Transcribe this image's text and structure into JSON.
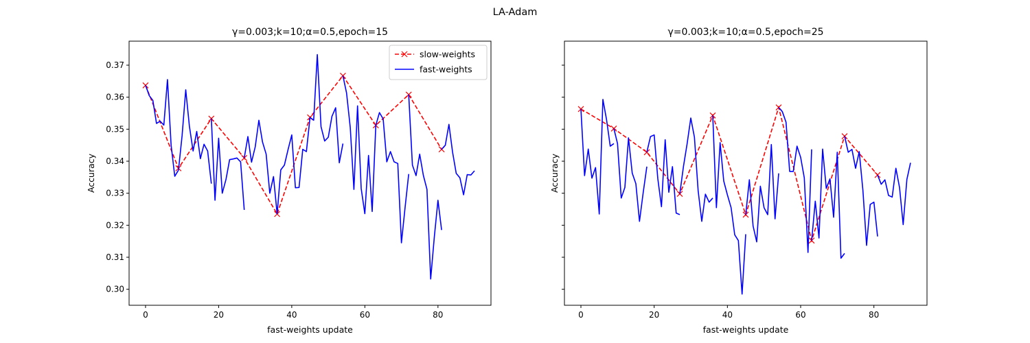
{
  "figure": {
    "suptitle": "LA-Adam"
  },
  "colors": {
    "slow": "#ff0000",
    "fast": "#0000ff",
    "axis": "#000000"
  },
  "chart_data": [
    {
      "type": "line",
      "title": "γ=0.003;k=10;α=0.5,epoch=15",
      "xlabel": "fast-weights update",
      "ylabel": "Accuracy",
      "xlim": [
        -4.5,
        94.5
      ],
      "ylim": [
        0.295,
        0.3775
      ],
      "xticks": [
        0,
        20,
        40,
        60,
        80
      ],
      "xtick_labels": [
        "0",
        "20",
        "40",
        "60",
        "80"
      ],
      "yticks": [
        0.3,
        0.31,
        0.32,
        0.33,
        0.34,
        0.35,
        0.36,
        0.37
      ],
      "ytick_labels": [
        "0.30",
        "0.31",
        "0.32",
        "0.33",
        "0.34",
        "0.35",
        "0.36",
        "0.37"
      ],
      "show_ytick_labels": true,
      "grid": false,
      "legend": {
        "position": "top-right",
        "entries": [
          {
            "label": "slow-weights",
            "series": "slow"
          },
          {
            "label": "fast-weights",
            "series": "fast"
          }
        ]
      },
      "series": [
        {
          "name": "slow-weights",
          "key": "slow",
          "style": "dashed",
          "marker": "x",
          "x": [
            0,
            9,
            18,
            27,
            36,
            45,
            54,
            63,
            72,
            81
          ],
          "y": [
            0.3637,
            0.3378,
            0.3533,
            0.341,
            0.3235,
            0.3537,
            0.3667,
            0.3512,
            0.3608,
            0.3437
          ]
        },
        {
          "name": "fast-weights",
          "key": "fast",
          "style": "solid",
          "segments": [
            {
              "x": [
                0,
                1,
                2,
                3,
                4,
                5,
                6,
                7,
                8,
                9
              ],
              "y": [
                0.3637,
                0.3605,
                0.359,
                0.3518,
                0.3525,
                0.3513,
                0.3655,
                0.345,
                0.3353,
                0.3372
              ]
            },
            {
              "x": [
                9,
                10,
                11,
                12,
                13,
                14,
                15,
                16,
                17,
                18
              ],
              "y": [
                0.3372,
                0.348,
                0.3623,
                0.351,
                0.3432,
                0.3493,
                0.3408,
                0.3453,
                0.3432,
                0.333
              ]
            },
            {
              "x": [
                18,
                19,
                20,
                21,
                22,
                23,
                24,
                25,
                26,
                27
              ],
              "y": [
                0.3533,
                0.3278,
                0.3472,
                0.33,
                0.3343,
                0.3405,
                0.3407,
                0.341,
                0.3398,
                0.3248
              ]
            },
            {
              "x": [
                27,
                28,
                29,
                30,
                31,
                32,
                33,
                34,
                35,
                36
              ],
              "y": [
                0.341,
                0.3477,
                0.3397,
                0.3445,
                0.3528,
                0.346,
                0.3422,
                0.33,
                0.3352,
                0.3235
              ]
            },
            {
              "x": [
                36,
                37,
                38,
                39,
                40,
                41,
                42,
                43,
                44,
                45
              ],
              "y": [
                0.3235,
                0.3373,
                0.3388,
                0.3437,
                0.3482,
                0.3317,
                0.3318,
                0.3437,
                0.343,
                0.3537
              ]
            },
            {
              "x": [
                45,
                46,
                47,
                48,
                49,
                50,
                51,
                52,
                53,
                54
              ],
              "y": [
                0.3537,
                0.3528,
                0.3733,
                0.3508,
                0.3463,
                0.3475,
                0.354,
                0.3567,
                0.3395,
                0.3455
              ]
            },
            {
              "x": [
                54,
                55,
                56,
                57,
                58,
                59,
                60,
                61,
                62,
                63
              ],
              "y": [
                0.3667,
                0.3613,
                0.3505,
                0.3312,
                0.3573,
                0.3315,
                0.3236,
                0.3418,
                0.3243,
                0.3512
              ]
            },
            {
              "x": [
                63,
                64,
                65,
                66,
                67,
                68,
                69,
                70,
                71,
                72
              ],
              "y": [
                0.3512,
                0.3552,
                0.3532,
                0.3398,
                0.343,
                0.3398,
                0.3393,
                0.3145,
                0.3255,
                0.336
              ]
            },
            {
              "x": [
                72,
                73,
                74,
                75,
                76,
                77,
                78,
                79,
                80,
                81
              ],
              "y": [
                0.3608,
                0.3388,
                0.3355,
                0.3422,
                0.3356,
                0.3312,
                0.3032,
                0.3163,
                0.3278,
                0.3185
              ]
            },
            {
              "x": [
                81,
                82,
                83,
                84,
                85,
                86,
                87,
                88,
                89,
                90
              ],
              "y": [
                0.3437,
                0.345,
                0.3515,
                0.3428,
                0.3362,
                0.3348,
                0.3295,
                0.3358,
                0.3357,
                0.337
              ]
            }
          ]
        }
      ]
    },
    {
      "type": "line",
      "title": "γ=0.003;k=10;α=0.5,epoch=25",
      "xlabel": "fast-weights update",
      "ylabel": "Accuracy",
      "xlim": [
        -4.5,
        94.5
      ],
      "ylim": [
        0.295,
        0.3775
      ],
      "xticks": [
        0,
        20,
        40,
        60,
        80
      ],
      "xtick_labels": [
        "0",
        "20",
        "40",
        "60",
        "80"
      ],
      "yticks": [
        0.3,
        0.31,
        0.32,
        0.33,
        0.34,
        0.35,
        0.36,
        0.37
      ],
      "show_ytick_labels": false,
      "grid": false,
      "series": [
        {
          "name": "slow-weights",
          "key": "slow",
          "style": "dashed",
          "marker": "x",
          "x": [
            0,
            9,
            18,
            27,
            36,
            45,
            54,
            63,
            72,
            81
          ],
          "y": [
            0.3563,
            0.3502,
            0.3428,
            0.3298,
            0.3543,
            0.3233,
            0.3568,
            0.3152,
            0.3478,
            0.3357
          ]
        },
        {
          "name": "fast-weights",
          "key": "fast",
          "style": "solid",
          "segments": [
            {
              "x": [
                0,
                1,
                2,
                3,
                4,
                5,
                6,
                7,
                8,
                9
              ],
              "y": [
                0.3563,
                0.3355,
                0.3438,
                0.3347,
                0.338,
                0.3235,
                0.3593,
                0.353,
                0.3447,
                0.3455
              ]
            },
            {
              "x": [
                9,
                10,
                11,
                12,
                13,
                14,
                15,
                16,
                17,
                18
              ],
              "y": [
                0.3502,
                0.3455,
                0.3285,
                0.3318,
                0.3473,
                0.3363,
                0.333,
                0.3212,
                0.3302,
                0.3383
              ]
            },
            {
              "x": [
                18,
                19,
                20,
                21,
                22,
                23,
                24,
                25,
                26,
                27
              ],
              "y": [
                0.3428,
                0.3477,
                0.3482,
                0.3345,
                0.3258,
                0.3467,
                0.3303,
                0.3383,
                0.3238,
                0.3233
              ]
            },
            {
              "x": [
                27,
                28,
                29,
                30,
                31,
                32,
                33,
                34,
                35,
                36
              ],
              "y": [
                0.3298,
                0.3383,
                0.3455,
                0.3535,
                0.3475,
                0.3308,
                0.3212,
                0.3297,
                0.3272,
                0.3285
              ]
            },
            {
              "x": [
                36,
                37,
                38,
                39,
                40,
                41,
                42,
                43,
                44,
                45
              ],
              "y": [
                0.3543,
                0.3255,
                0.3458,
                0.3338,
                0.3295,
                0.3255,
                0.317,
                0.3152,
                0.2985,
                0.3172
              ]
            },
            {
              "x": [
                45,
                46,
                47,
                48,
                49,
                50,
                51,
                52,
                53,
                54
              ],
              "y": [
                0.3233,
                0.3342,
                0.3198,
                0.3148,
                0.3322,
                0.3255,
                0.3233,
                0.3452,
                0.322,
                0.3362
              ]
            },
            {
              "x": [
                54,
                55,
                56,
                57,
                58,
                59,
                60,
                61,
                62,
                63
              ],
              "y": [
                0.3568,
                0.3555,
                0.3522,
                0.3368,
                0.3368,
                0.3447,
                0.3412,
                0.3348,
                0.3115,
                0.3437
              ]
            },
            {
              "x": [
                63,
                64,
                65,
                66,
                67,
                68,
                69,
                70,
                71,
                72
              ],
              "y": [
                0.3152,
                0.3275,
                0.316,
                0.3438,
                0.3315,
                0.3345,
                0.3225,
                0.3428,
                0.3097,
                0.3112
              ]
            },
            {
              "x": [
                72,
                73,
                74,
                75,
                76,
                77,
                78,
                79,
                80,
                81
              ],
              "y": [
                0.3478,
                0.3428,
                0.3437,
                0.3378,
                0.343,
                0.3308,
                0.3137,
                0.3265,
                0.3272,
                0.3165
              ]
            },
            {
              "x": [
                81,
                82,
                83,
                84,
                85,
                86,
                87,
                88,
                89,
                90
              ],
              "y": [
                0.3357,
                0.3328,
                0.3342,
                0.3293,
                0.3288,
                0.3378,
                0.3318,
                0.3202,
                0.3343,
                0.3395
              ]
            }
          ]
        }
      ]
    }
  ]
}
